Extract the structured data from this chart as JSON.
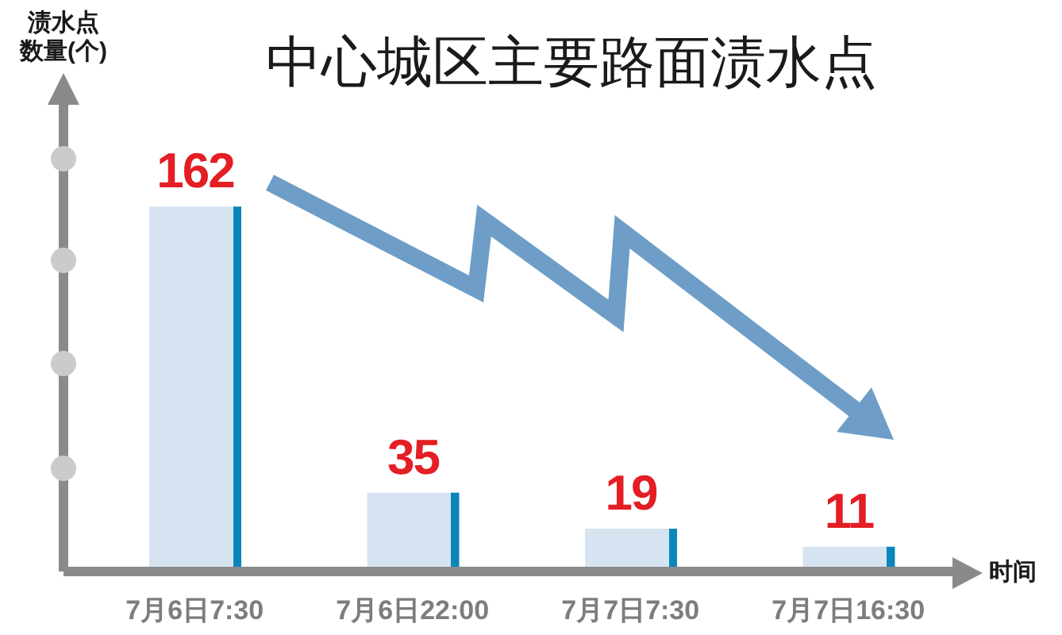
{
  "chart_data": {
    "type": "bar",
    "title": "中心城区主要路面渍水点",
    "ylabel": "渍水点数量(个)",
    "xlabel": "时间",
    "categories": [
      "7月6日7:30",
      "7月6日22:00",
      "7月7日7:30",
      "7月7日16:30"
    ],
    "values": [
      162,
      35,
      19,
      11
    ],
    "color": "#d6e4f1",
    "ylim": [
      0,
      210
    ],
    "tick_labels": "x",
    "data_labels": true
  }
}
